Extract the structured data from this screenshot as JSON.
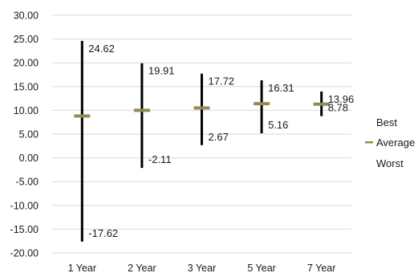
{
  "chart_data": {
    "type": "stock",
    "categories": [
      "1 Year",
      "2 Year",
      "3 Year",
      "5 Year",
      "7 Year"
    ],
    "series": [
      {
        "name": "Best",
        "values": [
          24.62,
          19.91,
          17.72,
          16.31,
          13.96
        ],
        "color": "#000000"
      },
      {
        "name": "Average",
        "values": [
          8.8,
          10.0,
          10.5,
          11.4,
          11.3
        ],
        "color": "#948a54"
      },
      {
        "name": "Worst",
        "values": [
          -17.62,
          -2.11,
          2.67,
          5.16,
          8.78
        ],
        "color": "#000000"
      }
    ],
    "data_labels": {
      "best": [
        "24.62",
        "19.91",
        "17.72",
        "16.31",
        "13.96"
      ],
      "worst": [
        "-17.62",
        "-2.11",
        "2.67",
        "5.16",
        "8.78"
      ]
    },
    "ylim": [
      -20,
      30
    ],
    "ytick_step": 5,
    "ytick_labels": [
      "30.00",
      "25.00",
      "20.00",
      "15.00",
      "10.00",
      "5.00",
      "0.00",
      "-5.00",
      "-10.00",
      "-15.00",
      "-20.00"
    ],
    "grid": true,
    "legend_position": "right",
    "title": "",
    "xlabel": "",
    "ylabel": ""
  }
}
